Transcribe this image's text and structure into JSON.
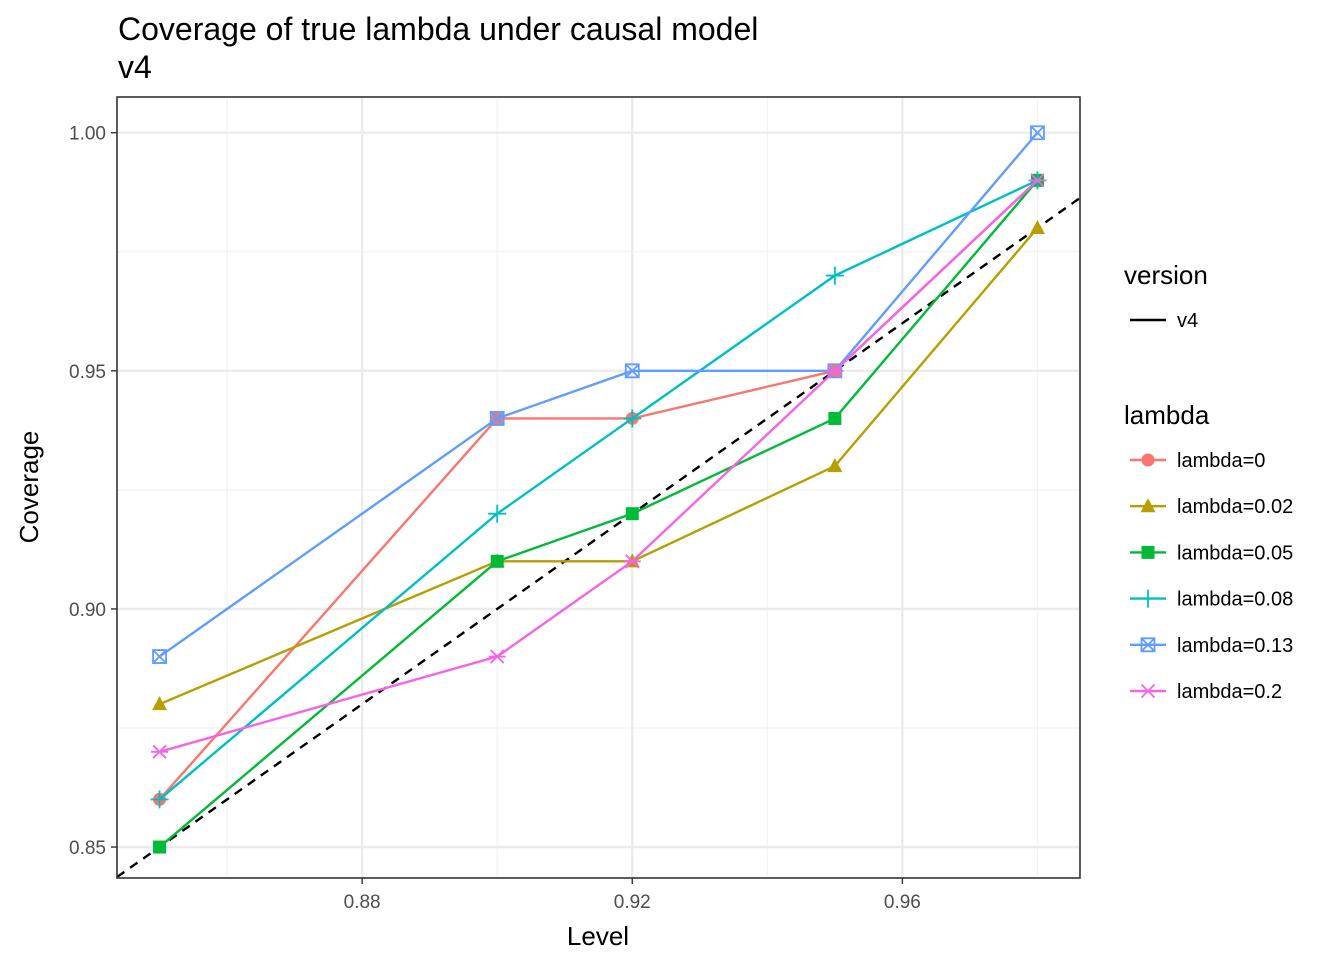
{
  "chart_data": {
    "type": "line",
    "title": "Coverage of true lambda under causal model",
    "subtitle": "v4",
    "xlabel": "Level",
    "ylabel": "Coverage",
    "xlim": [
      0.8437,
      0.9863
    ],
    "ylim": [
      0.8435,
      1.0075
    ],
    "xticks": [
      0.88,
      0.92,
      0.96
    ],
    "xtick_labels": [
      "0.88",
      "0.92",
      "0.96"
    ],
    "yticks": [
      0.85,
      0.9,
      0.95,
      1.0
    ],
    "ytick_labels": [
      "0.85",
      "0.90",
      "0.95",
      "1.00"
    ],
    "grid": true,
    "x": [
      0.85,
      0.9,
      0.92,
      0.95,
      0.98
    ],
    "reference_line": {
      "legend_title": "version",
      "name": "v4",
      "style": "dashed",
      "color": "#000000",
      "slope": 1,
      "intercept": 0
    },
    "legend_title": "lambda",
    "legend_position": "right",
    "series": [
      {
        "name": "lambda=0",
        "color": "#F8766D",
        "marker": "circle",
        "values": [
          0.86,
          0.94,
          0.94,
          0.95,
          0.99
        ]
      },
      {
        "name": "lambda=0.02",
        "color": "#B79F00",
        "marker": "triangle",
        "values": [
          0.88,
          0.91,
          0.91,
          0.93,
          0.98
        ]
      },
      {
        "name": "lambda=0.05",
        "color": "#00BA38",
        "marker": "square",
        "values": [
          0.85,
          0.91,
          0.92,
          0.94,
          0.99
        ]
      },
      {
        "name": "lambda=0.08",
        "color": "#00BFC4",
        "marker": "plus",
        "values": [
          0.86,
          0.92,
          0.94,
          0.97,
          0.99
        ]
      },
      {
        "name": "lambda=0.13",
        "color": "#619CFF",
        "marker": "square-x",
        "values": [
          0.89,
          0.94,
          0.95,
          0.95,
          1.0
        ]
      },
      {
        "name": "lambda=0.2",
        "color": "#F564E3",
        "marker": "asterisk",
        "values": [
          0.87,
          0.89,
          0.91,
          0.95,
          0.99
        ]
      }
    ]
  }
}
